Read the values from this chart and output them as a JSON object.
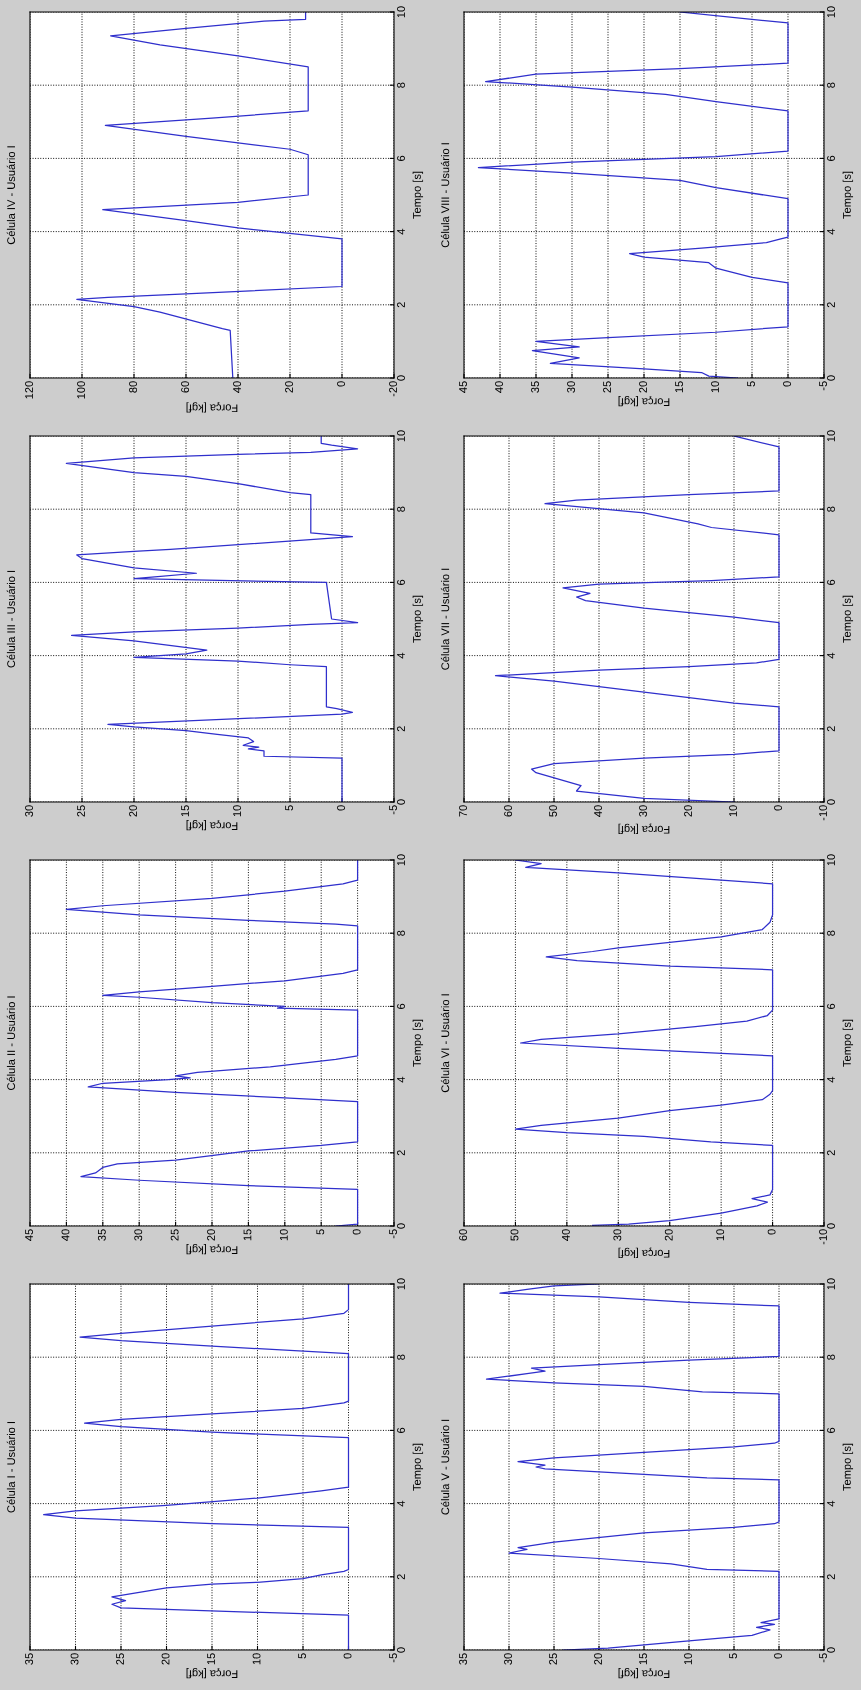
{
  "chart_data": [
    {
      "type": "line",
      "title": "Célula IV - Usuário I",
      "xlabel": "Força [kgf]",
      "ylabel": "Tempo [s]",
      "orientation": "horizontal",
      "xlim": [
        120,
        -20
      ],
      "xticks": [
        120,
        100,
        80,
        60,
        40,
        20,
        0,
        -20
      ],
      "ylim": [
        0,
        10
      ],
      "yticks": [
        0,
        2,
        4,
        6,
        8,
        10
      ],
      "grid": true,
      "series": [
        {
          "color": "#2f2fcc",
          "x": [
            0,
            1.3,
            1.35,
            1.8,
            1.95,
            2.15,
            2.2,
            2.3,
            2.5,
            3.8,
            4.1,
            4.3,
            4.6,
            4.8,
            5.0,
            6.1,
            6.25,
            6.6,
            6.9,
            7.1,
            7.3,
            8.5,
            8.8,
            9.1,
            9.35,
            9.55,
            9.75,
            9.8,
            10
          ],
          "values": [
            42,
            43,
            46,
            70,
            80,
            102,
            90,
            60,
            0,
            0,
            40,
            60,
            92,
            40,
            13,
            13,
            20,
            60,
            91,
            50,
            13,
            13,
            40,
            70,
            89,
            60,
            30,
            14,
            14
          ]
        }
      ]
    },
    {
      "type": "line",
      "title": "Célula VIII - Usuário I",
      "xlabel": "Força [kgf]",
      "ylabel": "Tempo [s]",
      "orientation": "horizontal",
      "xlim": [
        45,
        -5
      ],
      "xticks": [
        45,
        40,
        35,
        30,
        25,
        20,
        15,
        10,
        5,
        0,
        -5
      ],
      "ylim": [
        0,
        10
      ],
      "yticks": [
        0,
        2,
        4,
        6,
        8,
        10
      ],
      "grid": true,
      "series": [
        {
          "color": "#2f2fcc",
          "x": [
            0,
            0.05,
            0.15,
            0.25,
            0.4,
            0.55,
            0.75,
            0.85,
            1.0,
            1.1,
            1.25,
            1.4,
            2.6,
            2.75,
            3.0,
            3.15,
            3.3,
            3.4,
            3.55,
            3.7,
            3.8,
            3.85,
            4.9,
            5.2,
            5.4,
            5.6,
            5.75,
            5.9,
            6.05,
            6.2,
            7.3,
            7.55,
            7.75,
            7.95,
            8.1,
            8.3,
            8.45,
            8.6,
            9.7,
            10
          ],
          "values": [
            7,
            11,
            12,
            20,
            33,
            29,
            35.5,
            29,
            35,
            25,
            10,
            0,
            0,
            5,
            10,
            11,
            20,
            22,
            12,
            3,
            1,
            0,
            0,
            10,
            15,
            30,
            43,
            30,
            10,
            0,
            0,
            10,
            17,
            30,
            42,
            35,
            15,
            0,
            0,
            15
          ]
        }
      ]
    },
    {
      "type": "line",
      "title": "Célula III - Usuário I",
      "xlabel": "Força [kgf]",
      "ylabel": "Tempo [s]",
      "orientation": "horizontal",
      "xlim": [
        30,
        -5
      ],
      "xticks": [
        30,
        25,
        20,
        15,
        10,
        5,
        0,
        -5
      ],
      "ylim": [
        0,
        10
      ],
      "yticks": [
        0,
        2,
        4,
        6,
        8,
        10
      ],
      "grid": true,
      "series": [
        {
          "color": "#2f2fcc",
          "x": [
            0,
            1.2,
            1.25,
            1.4,
            1.45,
            1.5,
            1.55,
            1.65,
            1.75,
            1.85,
            1.95,
            2.05,
            2.12,
            2.4,
            2.45,
            2.55,
            2.6,
            3.7,
            3.75,
            3.85,
            3.95,
            4.05,
            4.15,
            4.4,
            4.55,
            4.65,
            4.75,
            4.85,
            4.9,
            5.0,
            6.0,
            6.1,
            6.15,
            6.25,
            6.4,
            6.65,
            6.75,
            6.85,
            6.9,
            7.25,
            7.35,
            8.4,
            8.45,
            8.7,
            8.9,
            9.0,
            9.25,
            9.4,
            9.5,
            9.55,
            9.65,
            9.75,
            9.8,
            10
          ],
          "values": [
            0,
            0,
            7.5,
            7.5,
            9,
            8,
            9.5,
            8.5,
            9,
            12,
            15,
            20,
            22.5,
            0,
            -1,
            0.5,
            1.5,
            1.5,
            5,
            10,
            20,
            15,
            13,
            20,
            26,
            20,
            10,
            3,
            -1.5,
            1,
            1.5,
            20,
            18,
            14,
            20,
            25,
            25.5,
            20,
            16.5,
            -1,
            3,
            3,
            5,
            10,
            15,
            20,
            26.5,
            20,
            10,
            3,
            -1.5,
            1,
            2,
            2
          ]
        }
      ]
    },
    {
      "type": "line",
      "title": "Célula VII - Usuário I",
      "xlabel": "Força [kgf]",
      "ylabel": "Tempo [s]",
      "orientation": "horizontal",
      "xlim": [
        70,
        -10
      ],
      "xticks": [
        70,
        60,
        50,
        40,
        30,
        20,
        10,
        0,
        -10
      ],
      "ylim": [
        0,
        10
      ],
      "yticks": [
        0,
        2,
        4,
        6,
        8,
        10
      ],
      "grid": true,
      "series": [
        {
          "color": "#2f2fcc",
          "x": [
            0,
            0.1,
            0.3,
            0.45,
            0.8,
            0.9,
            1.05,
            1.2,
            1.3,
            1.4,
            2.6,
            2.7,
            3.0,
            3.3,
            3.45,
            3.6,
            3.7,
            3.8,
            3.9,
            4.9,
            5.05,
            5.3,
            5.5,
            5.6,
            5.7,
            5.85,
            5.95,
            6.05,
            6.15,
            7.3,
            7.5,
            7.6,
            7.9,
            8.15,
            8.25,
            8.4,
            8.5,
            9.7,
            10
          ],
          "values": [
            10,
            30,
            45,
            44,
            54,
            55,
            50,
            30,
            10,
            0,
            0,
            10,
            30,
            50,
            63,
            40,
            20,
            5,
            0,
            0,
            10,
            30,
            43,
            45,
            42,
            48,
            40,
            15,
            0,
            0,
            15,
            18,
            30,
            52,
            45,
            20,
            0,
            0,
            10
          ]
        }
      ]
    },
    {
      "type": "line",
      "title": "Célula II - Usuário I",
      "xlabel": "Força [kgf]",
      "ylabel": "Tempo [s]",
      "orientation": "horizontal",
      "xlim": [
        45,
        -5
      ],
      "xticks": [
        45,
        40,
        35,
        30,
        25,
        20,
        15,
        10,
        5,
        0,
        -5
      ],
      "ylim": [
        0,
        10
      ],
      "yticks": [
        0,
        2,
        4,
        6,
        8,
        10
      ],
      "grid": true,
      "series": [
        {
          "color": "#2f2fcc",
          "x": [
            0,
            0.05,
            1.0,
            1.1,
            1.25,
            1.35,
            1.45,
            1.6,
            1.7,
            1.8,
            1.95,
            2.05,
            2.2,
            2.3,
            3.4,
            3.5,
            3.65,
            3.8,
            3.9,
            4.0,
            4.05,
            4.1,
            4.2,
            4.35,
            4.55,
            4.65,
            5.9,
            5.95,
            6.0,
            6.1,
            6.25,
            6.3,
            6.4,
            6.55,
            6.7,
            6.9,
            7.0,
            8.2,
            8.25,
            8.35,
            8.5,
            8.65,
            8.75,
            8.95,
            9.15,
            9.35,
            9.45,
            10
          ],
          "values": [
            3,
            0,
            0,
            15,
            30,
            38,
            36,
            35,
            33,
            25,
            19,
            15,
            5,
            0,
            0,
            10,
            25,
            37,
            35,
            26,
            23,
            25,
            22,
            12,
            3,
            0,
            0,
            11,
            10,
            20,
            30,
            35,
            30,
            20,
            10,
            2,
            0,
            0,
            3,
            15,
            30,
            40,
            35,
            20,
            10,
            2,
            0,
            0
          ]
        }
      ]
    },
    {
      "type": "line",
      "title": "Célula VI - Usuário I",
      "xlabel": "Força [kgf]",
      "ylabel": "Tempo [s]",
      "orientation": "horizontal",
      "xlim": [
        60,
        -10
      ],
      "xticks": [
        60,
        50,
        40,
        30,
        20,
        10,
        0,
        -10
      ],
      "ylim": [
        0,
        10
      ],
      "yticks": [
        0,
        2,
        4,
        6,
        8,
        10
      ],
      "grid": true,
      "series": [
        {
          "color": "#2f2fcc",
          "x": [
            0.02,
            0.05,
            0.15,
            0.35,
            0.55,
            0.65,
            0.75,
            0.85,
            1.0,
            2.2,
            2.3,
            2.45,
            2.55,
            2.65,
            2.75,
            2.95,
            3.15,
            3.3,
            3.45,
            3.6,
            3.7,
            4.65,
            4.75,
            4.85,
            5.0,
            5.1,
            5.25,
            5.45,
            5.6,
            5.75,
            5.9,
            7.0,
            7.1,
            7.25,
            7.35,
            7.5,
            7.6,
            7.75,
            7.9,
            8.1,
            8.3,
            8.5,
            9.35,
            9.45,
            9.65,
            9.8,
            9.9,
            10
          ],
          "values": [
            35,
            28,
            20,
            10,
            3,
            1,
            4,
            0.5,
            0,
            0,
            12,
            25,
            40,
            50,
            45,
            30,
            20,
            10,
            2,
            0.5,
            0,
            0,
            15,
            30,
            49,
            45,
            30,
            15,
            5,
            1,
            0,
            0,
            20,
            38,
            44,
            35,
            30,
            20,
            10,
            2,
            0.5,
            0,
            0,
            10,
            30,
            48,
            45,
            50
          ]
        }
      ]
    },
    {
      "type": "line",
      "title": "Célula I - Usuário I",
      "xlabel": "Força [kgf]",
      "ylabel": "Tempo [s]",
      "orientation": "horizontal",
      "xlim": [
        35,
        -5
      ],
      "xticks": [
        35,
        30,
        25,
        20,
        15,
        10,
        5,
        0,
        -5
      ],
      "ylim": [
        0,
        10
      ],
      "yticks": [
        0,
        2,
        4,
        6,
        8,
        10
      ],
      "grid": true,
      "series": [
        {
          "color": "#2f2fcc",
          "x": [
            0,
            0.95,
            1.15,
            1.25,
            1.35,
            1.45,
            1.7,
            1.8,
            1.85,
            1.95,
            2.05,
            2.15,
            2.2,
            3.35,
            3.45,
            3.6,
            3.7,
            3.8,
            3.95,
            4.15,
            4.35,
            4.45,
            5.8,
            5.95,
            6.1,
            6.2,
            6.3,
            6.45,
            6.6,
            6.75,
            6.8,
            8.1,
            8.3,
            8.45,
            8.55,
            8.65,
            8.85,
            9.05,
            9.2,
            9.3,
            10
          ],
          "values": [
            0,
            0,
            25,
            26,
            24.5,
            26,
            20,
            15,
            10,
            5,
            3,
            0.5,
            0,
            0,
            15,
            30,
            33.5,
            30,
            20,
            10,
            3,
            0,
            0,
            15,
            25,
            29,
            25,
            15,
            5,
            0.5,
            0,
            0,
            15,
            25,
            29.5,
            25,
            15,
            5,
            0.5,
            0,
            0
          ]
        }
      ]
    },
    {
      "type": "line",
      "title": "Célula V - Usuário I",
      "xlabel": "Força [kgf]",
      "ylabel": "Tempo [s]",
      "orientation": "horizontal",
      "xlim": [
        35,
        -5
      ],
      "xticks": [
        35,
        30,
        25,
        20,
        15,
        10,
        5,
        0,
        -5
      ],
      "ylim": [
        0,
        10
      ],
      "yticks": [
        0,
        2,
        4,
        6,
        8,
        10
      ],
      "grid": true,
      "series": [
        {
          "color": "#2f2fcc",
          "x": [
            0,
            0.05,
            0.25,
            0.4,
            0.55,
            0.62,
            0.7,
            0.75,
            0.85,
            2.15,
            2.2,
            2.35,
            2.5,
            2.65,
            2.75,
            2.8,
            2.95,
            3.2,
            3.35,
            3.45,
            3.5,
            4.65,
            4.7,
            4.8,
            4.95,
            5.0,
            5.05,
            5.15,
            5.25,
            5.4,
            5.55,
            5.65,
            5.7,
            7.0,
            7.05,
            7.2,
            7.3,
            7.4,
            7.55,
            7.62,
            7.7,
            7.8,
            7.92,
            8.02,
            9.4,
            9.5,
            9.65,
            9.75,
            9.85,
            9.95,
            10
          ],
          "values": [
            24,
            19,
            10,
            3,
            1,
            2.5,
            0.5,
            2,
            0,
            0,
            8,
            12,
            20,
            30,
            28,
            29,
            25,
            15,
            5,
            0.5,
            0,
            0,
            8,
            15,
            26,
            27,
            26,
            29,
            25,
            15,
            5,
            0.5,
            0,
            0,
            8.5,
            15,
            25,
            32.5,
            28,
            26,
            27.5,
            20,
            10,
            0,
            0,
            10,
            20,
            31,
            28,
            25,
            20
          ]
        }
      ]
    }
  ]
}
